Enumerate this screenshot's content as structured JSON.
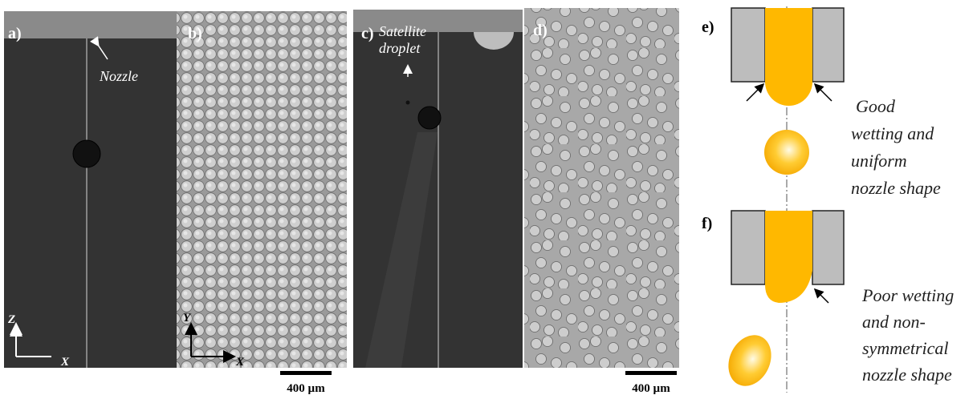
{
  "panels": [
    {
      "label": "a)",
      "annotation": [
        "Nozzle"
      ],
      "axes": [
        "Z",
        "X"
      ]
    },
    {
      "label": "b)",
      "axes": [
        "Y",
        "X"
      ],
      "scale_bar": "400 µm"
    },
    {
      "label": "c)",
      "annotation": [
        "Satellite",
        "droplet"
      ]
    },
    {
      "label": "d)",
      "scale_bar": "400 µm"
    },
    {
      "label": "e)",
      "caption": [
        "Good",
        "wetting and",
        "uniform",
        "nozzle shape"
      ]
    },
    {
      "label": "f)",
      "caption": [
        "Poor wetting",
        "and non-",
        "symmetrical",
        "nozzle shape"
      ]
    }
  ]
}
